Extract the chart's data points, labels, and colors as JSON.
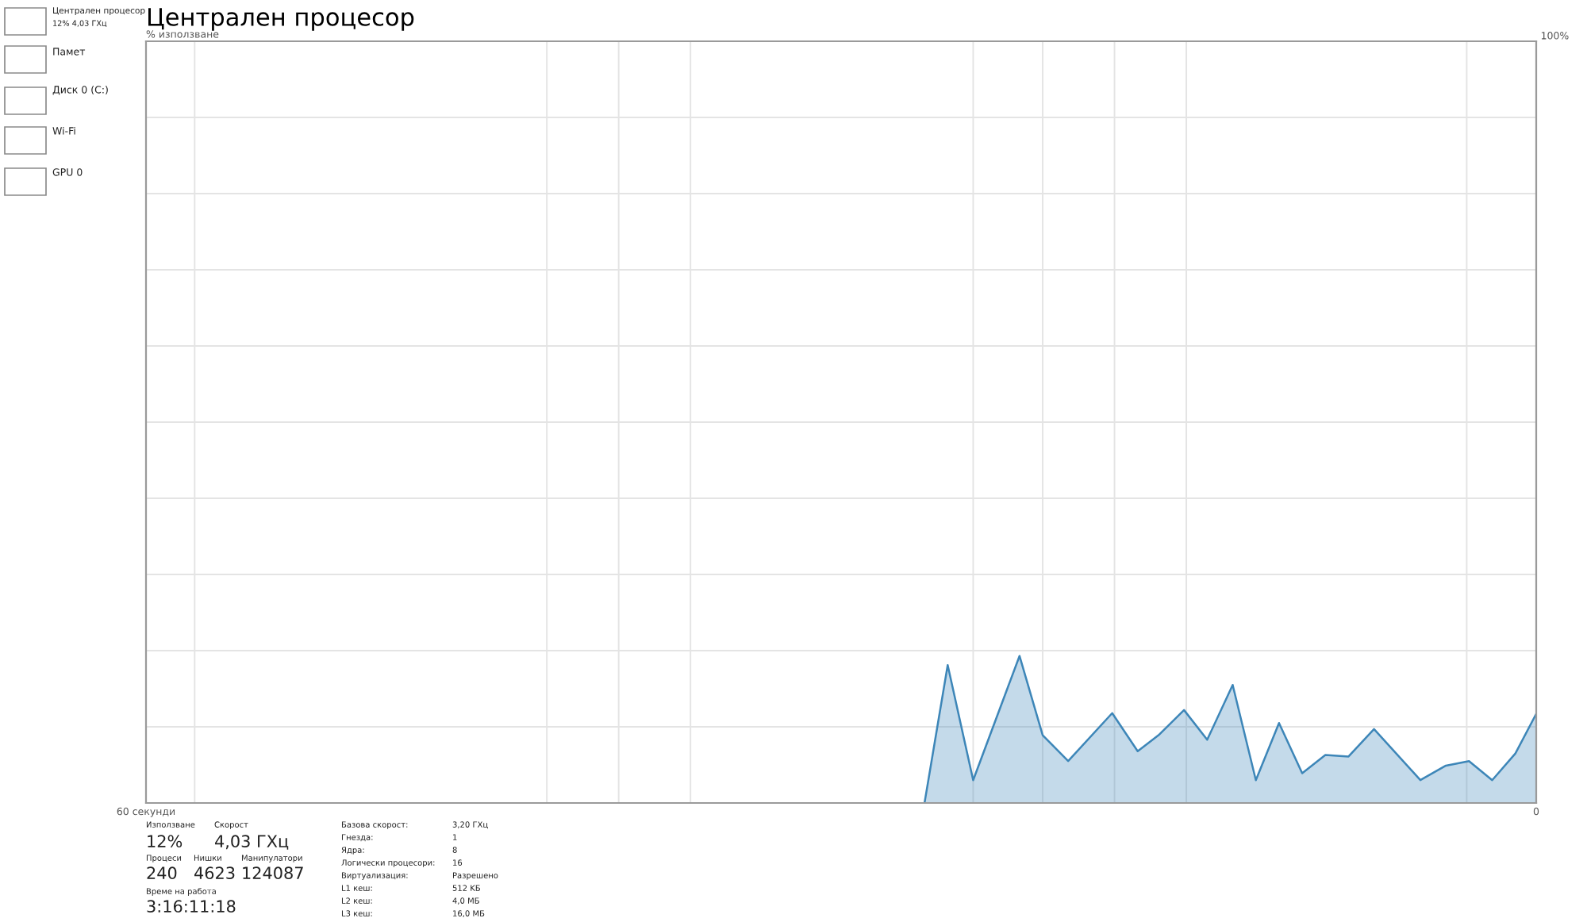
{
  "chart_data": {
    "type": "area",
    "title": "Централен процесор",
    "ylabel": "% използване",
    "x": [
      26.4,
      25.4,
      24.3,
      22.3,
      21.3,
      20.2,
      18.3,
      17.2,
      16.3,
      15.2,
      14.2,
      13.1,
      12.1,
      11.1,
      10.1,
      9.1,
      8.1,
      7.0,
      5.0,
      3.9,
      2.9,
      1.9,
      0.9,
      0
    ],
    "series": [
      {
        "color": "#3d86b8",
        "values": [
          0,
          18.1,
          3.0,
          19.3,
          8.9,
          5.5,
          11.8,
          6.8,
          8.9,
          12.2,
          8.3,
          15.5,
          3.0,
          10.5,
          3.9,
          6.3,
          6.1,
          9.7,
          3.0,
          4.9,
          5.5,
          3.0,
          6.5,
          11.7
        ]
      }
    ],
    "xlim": [
      60,
      0
    ],
    "xticks": [
      {
        "value": 60,
        "label": "60 секунди"
      },
      {
        "value": 57.9,
        "label": null
      },
      {
        "value": 42.7,
        "label": null
      },
      {
        "value": 39.6,
        "label": null
      },
      {
        "value": 36.5,
        "label": null
      },
      {
        "value": 24.3,
        "label": null
      },
      {
        "value": 21.3,
        "label": null
      },
      {
        "value": 18.2,
        "label": null
      },
      {
        "value": 15.1,
        "label": null
      },
      {
        "value": 3.0,
        "label": null
      },
      0
    ],
    "ylim": [
      0,
      100
    ],
    "yticks": [
      {
        "value": 0,
        "label": null
      },
      {
        "value": 10,
        "label": null
      },
      {
        "value": 20,
        "label": null
      },
      {
        "value": 30,
        "label": null
      },
      {
        "value": 40,
        "label": null
      },
      {
        "value": 50,
        "label": null
      },
      {
        "value": 60,
        "label": null
      },
      {
        "value": 70,
        "label": null
      },
      {
        "value": 80,
        "label": null
      },
      {
        "value": 90,
        "label": null
      },
      {
        "value": 100,
        "label": "100%"
      }
    ],
    "grid": true,
    "annotations": [
      "Централен процесор",
      "12% 4,03 ГХц",
      "Памет",
      "Диск 0 (C:)",
      "Wi-Fi",
      "GPU 0",
      "Използване",
      "12%",
      "Скорост",
      "4,03 ГХц",
      "Процеси",
      "240",
      "Нишки",
      "4623",
      "Манипулатори",
      "124087",
      "Време на работа",
      "3:16:11:18",
      "Базова скорост:",
      "3,20 ГХц",
      "Гнезда:",
      "1",
      "Ядра:",
      "8",
      "Логически процесори:",
      "16",
      "Виртуализация:",
      "Разрешено",
      "L1 кеш:",
      "512 KБ",
      "L2 кеш:",
      "4,0 MБ",
      "L3 кеш:",
      "16,0 MБ"
    ]
  }
}
